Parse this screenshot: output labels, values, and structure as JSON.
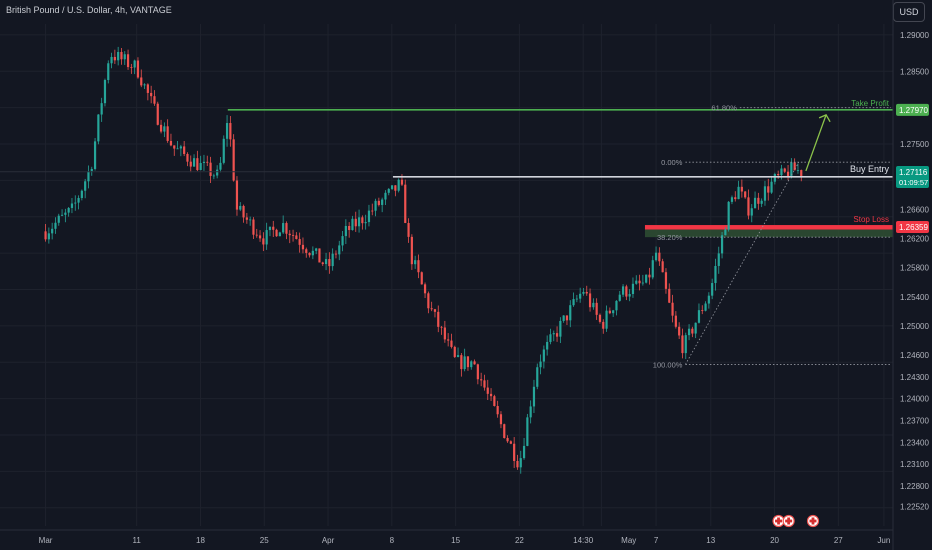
{
  "header": {
    "title": "British Pound / U.S. Dollar, 4h, VANTAGE"
  },
  "toolbar": {
    "currency_label": "USD"
  },
  "colors": {
    "background": "#131722",
    "grid": "#1e222d",
    "up": "#26a69a",
    "down": "#ef5350",
    "take_profit": "#4caf50",
    "entry": "#d1d4dc",
    "stop": "#f23645",
    "axis_text": "#b2b5be"
  },
  "chart_data": {
    "type": "candlestick",
    "symbol": "British Pound / U.S. Dollar",
    "interval": "4h",
    "source": "VANTAGE",
    "ylim": [
      1.2225,
      1.2915
    ],
    "y_ticks": [
      "1.29000",
      "1.28500",
      "1.27970",
      "1.27500",
      "1.27116",
      "1.26600",
      "1.26359",
      "1.26200",
      "1.25800",
      "1.25400",
      "1.25000",
      "1.24600",
      "1.24300",
      "1.24000",
      "1.23700",
      "1.23400",
      "1.23100",
      "1.22800",
      "1.22520"
    ],
    "grid_ticks": [
      1.29,
      1.285,
      1.28,
      1.275,
      1.27,
      1.265,
      1.26,
      1.255,
      1.25,
      1.245,
      1.24,
      1.235,
      1.23,
      1.225
    ],
    "x_ticks": [
      "Mar",
      "11",
      "18",
      "25",
      "Apr",
      "8",
      "15",
      "22",
      "14:30",
      "May",
      "7",
      "13",
      "20",
      "27",
      "Jun"
    ],
    "price_anchors": [
      {
        "date": "2024-03-01",
        "close": 1.263
      },
      {
        "date": "2024-03-04",
        "close": 1.266
      },
      {
        "date": "2024-03-06",
        "close": 1.272
      },
      {
        "date": "2024-03-08",
        "close": 1.2875
      },
      {
        "date": "2024-03-11",
        "close": 1.2855
      },
      {
        "date": "2024-03-13",
        "close": 1.2795
      },
      {
        "date": "2024-03-15",
        "close": 1.2745
      },
      {
        "date": "2024-03-18",
        "close": 1.272
      },
      {
        "date": "2024-03-20",
        "close": 1.2705
      },
      {
        "date": "2024-03-21",
        "close": 1.279
      },
      {
        "date": "2024-03-22",
        "close": 1.266
      },
      {
        "date": "2024-03-25",
        "close": 1.262
      },
      {
        "date": "2024-03-27",
        "close": 1.264
      },
      {
        "date": "2024-04-01",
        "close": 1.258
      },
      {
        "date": "2024-04-03",
        "close": 1.263
      },
      {
        "date": "2024-04-05",
        "close": 1.265
      },
      {
        "date": "2024-04-09",
        "close": 1.2695
      },
      {
        "date": "2024-04-10",
        "close": 1.26
      },
      {
        "date": "2024-04-12",
        "close": 1.253
      },
      {
        "date": "2024-04-15",
        "close": 1.245
      },
      {
        "date": "2024-04-17",
        "close": 1.245
      },
      {
        "date": "2024-04-19",
        "close": 1.239
      },
      {
        "date": "2024-04-22",
        "close": 1.231
      },
      {
        "date": "2024-04-24",
        "close": 1.245
      },
      {
        "date": "2024-04-26",
        "close": 1.249
      },
      {
        "date": "2024-04-29",
        "close": 1.255
      },
      {
        "date": "2024-05-01",
        "close": 1.25
      },
      {
        "date": "2024-05-03",
        "close": 1.2545
      },
      {
        "date": "2024-05-06",
        "close": 1.256
      },
      {
        "date": "2024-05-07",
        "close": 1.26
      },
      {
        "date": "2024-05-09",
        "close": 1.25
      },
      {
        "date": "2024-05-10",
        "close": 1.247
      },
      {
        "date": "2024-05-13",
        "close": 1.255
      },
      {
        "date": "2024-05-15",
        "close": 1.2665
      },
      {
        "date": "2024-05-16",
        "close": 1.269
      },
      {
        "date": "2024-05-17",
        "close": 1.266
      },
      {
        "date": "2024-05-20",
        "close": 1.27
      },
      {
        "date": "2024-05-22",
        "close": 1.2715
      },
      {
        "date": "2024-05-23",
        "close": 1.2712
      }
    ],
    "annotations": {
      "take_profit": {
        "label": "Take Profit",
        "price": 1.2797,
        "price_label": "1.27970",
        "fib_label": "61.80%"
      },
      "buy_entry": {
        "label": "Buy Entry",
        "price": 1.2705,
        "current_price_label": "1.27116",
        "countdown": "01:09:57"
      },
      "stop_loss": {
        "label": "Stop Loss",
        "price": 1.26359,
        "price_label": "1.26359"
      },
      "fib_levels": [
        {
          "label": "0.00%",
          "price": 1.2725
        },
        {
          "label": "38.20%",
          "price": 1.2622
        },
        {
          "label": "100.00%",
          "price": 1.2447
        }
      ]
    }
  }
}
